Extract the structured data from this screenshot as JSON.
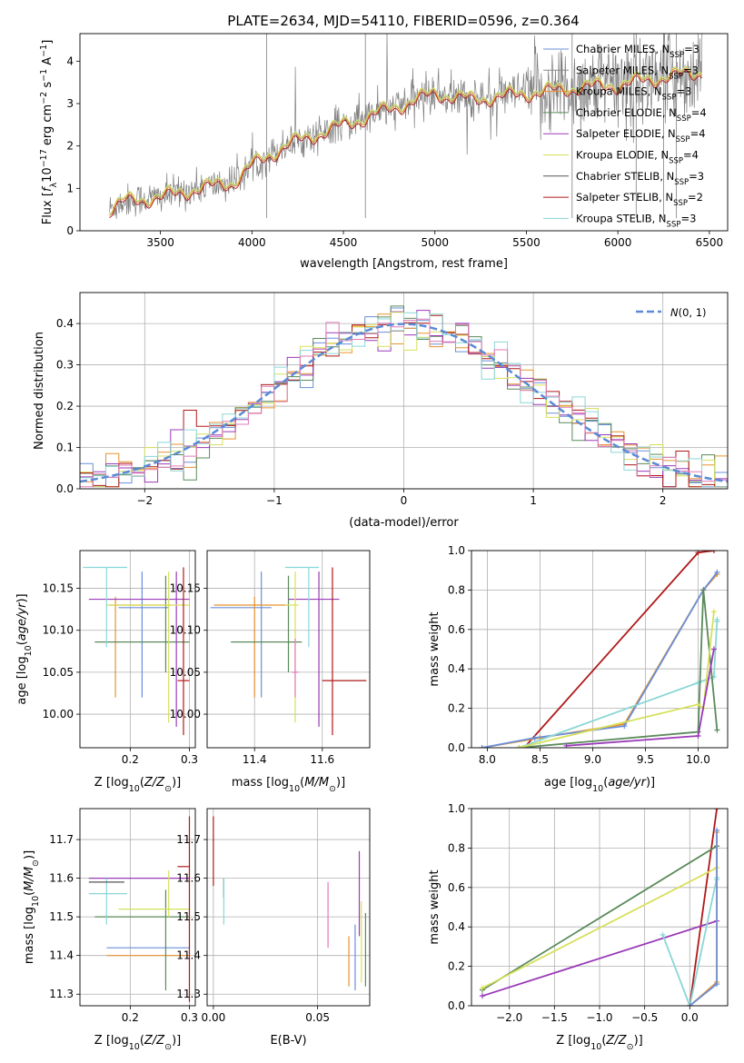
{
  "figure": {
    "title": "PLATE=2634, MJD=54110, FIBERID=0596, z=0.364",
    "colors": {
      "Chabrier MILES": "#6a8fd8",
      "Salpeter MILES": "#8a8a8a",
      "Kroupa MILES": "#e6922e",
      "Chabrier ELODIE": "#5a8a5a",
      "Salpeter ELODIE": "#9a3ab8",
      "Kroupa ELODIE": "#d6e05a",
      "Chabrier STELIB": "#555555",
      "Salpeter STELIB": "#b01818",
      "Kroupa STELIB": "#8ad6d6",
      "gaussian": "#5a8ad6",
      "hist_pink": "#e07ab8"
    }
  },
  "chart_data": [
    {
      "id": "spectrum",
      "type": "line",
      "title": "PLATE=2634, MJD=54110, FIBERID=0596, z=0.364",
      "xlabel": "wavelength [Angstrom, rest frame]",
      "ylabel": "Flux [f_λ 10^-17 erg cm^-2 s^-1 A^-1]",
      "xlim": [
        3060,
        6600
      ],
      "ylim": [
        0,
        4.65
      ],
      "xticks": [
        3500,
        4000,
        4500,
        5000,
        5500,
        6000,
        6500
      ],
      "yticks": [
        0,
        1,
        2,
        3,
        4
      ],
      "legend_position": "upper-right",
      "legend": [
        {
          "name": "Chabrier MILES",
          "nssp": "3"
        },
        {
          "name": "Salpeter MILES",
          "nssp": "3"
        },
        {
          "name": "Kroupa MILES",
          "nssp": "3"
        },
        {
          "name": "Chabrier ELODIE",
          "nssp": "4"
        },
        {
          "name": "Salpeter ELODIE",
          "nssp": "4"
        },
        {
          "name": "Kroupa ELODIE",
          "nssp": "4"
        },
        {
          "name": "Chabrier STELIB",
          "nssp": "3"
        },
        {
          "name": "Salpeter STELIB",
          "nssp": "2"
        },
        {
          "name": "Kroupa STELIB",
          "nssp": "3"
        }
      ],
      "continuum": [
        [
          3220,
          0.5
        ],
        [
          3300,
          0.7
        ],
        [
          3500,
          0.8
        ],
        [
          3700,
          1.0
        ],
        [
          3900,
          1.15
        ],
        [
          4000,
          1.55
        ],
        [
          4200,
          2.05
        ],
        [
          4500,
          2.5
        ],
        [
          4800,
          2.95
        ],
        [
          5000,
          3.25
        ],
        [
          5200,
          3.1
        ],
        [
          5400,
          3.2
        ],
        [
          5600,
          3.3
        ],
        [
          5800,
          3.4
        ],
        [
          6000,
          3.45
        ],
        [
          6200,
          3.6
        ],
        [
          6450,
          3.75
        ]
      ]
    },
    {
      "id": "residuals",
      "type": "histogram",
      "xlabel": "(data-model)/error",
      "ylabel": "Normed distribution",
      "xlim": [
        -2.5,
        2.5
      ],
      "ylim": [
        0,
        0.475
      ],
      "xticks": [
        -2,
        -1,
        0,
        1,
        2
      ],
      "yticks": [
        0.0,
        0.1,
        0.2,
        0.3,
        0.4
      ],
      "legend_position": "upper-right",
      "legend": [
        {
          "name": "N(0, 1)"
        }
      ],
      "gaussian": {
        "mean": 0,
        "sigma": 1
      }
    },
    {
      "id": "age-vs-Z",
      "type": "errorbar",
      "xlabel": "Z [log10(Z/Z⊙)]",
      "ylabel": "age  [log10(age/yr)]",
      "xlim": [
        0.115,
        0.31
      ],
      "ylim": [
        9.96,
        10.195
      ],
      "xticks": [
        0.2,
        0.3
      ],
      "yticks": [
        10.0,
        10.05,
        10.1,
        10.15
      ],
      "points": [
        {
          "s": "Chabrier MILES",
          "x": 0.22,
          "xe": [
            0.18,
            0.265
          ],
          "y": 10.127,
          "ye": [
            10.02,
            10.17
          ]
        },
        {
          "s": "Kroupa MILES",
          "x": 0.175,
          "xe": [
            0.165,
            0.27
          ],
          "y": 10.13,
          "ye": [
            10.02,
            10.14
          ]
        },
        {
          "s": "Chabrier ELODIE",
          "x": 0.26,
          "xe": [
            0.14,
            0.3
          ],
          "y": 10.086,
          "ye": [
            10.05,
            10.165
          ]
        },
        {
          "s": "Salpeter ELODIE",
          "x": 0.278,
          "xe": [
            0.13,
            0.3
          ],
          "y": 10.137,
          "ye": [
            9.985,
            10.17
          ]
        },
        {
          "s": "Kroupa ELODIE",
          "x": 0.265,
          "xe": [
            0.16,
            0.3
          ],
          "y": 10.13,
          "ye": [
            9.99,
            10.17
          ]
        },
        {
          "s": "Salpeter STELIB",
          "x": 0.29,
          "xe": [
            0.28,
            0.3
          ],
          "y": 10.04,
          "ye": [
            9.975,
            10.175
          ]
        },
        {
          "s": "Kroupa STELIB",
          "x": 0.16,
          "xe": [
            0.12,
            0.195
          ],
          "y": 10.175,
          "ye": [
            10.08,
            10.175
          ]
        }
      ]
    },
    {
      "id": "age-vs-mass",
      "type": "errorbar",
      "xlabel": "mass [log10(M/M⊙)]",
      "ylabel": "",
      "xlim": [
        11.26,
        11.74
      ],
      "ylim": [
        9.96,
        10.195
      ],
      "xticks": [
        11.4,
        11.6
      ],
      "yticks": [
        10.0,
        10.05,
        10.1,
        10.15
      ],
      "points": [
        {
          "s": "Chabrier MILES",
          "x": 11.42,
          "xe": [
            11.27,
            11.45
          ],
          "y": 10.127,
          "ye": [
            10.02,
            10.17
          ]
        },
        {
          "s": "Kroupa MILES",
          "x": 11.4,
          "xe": [
            11.28,
            11.5
          ],
          "y": 10.13,
          "ye": [
            10.02,
            10.14
          ]
        },
        {
          "s": "Chabrier ELODIE",
          "x": 11.5,
          "xe": [
            11.33,
            11.54
          ],
          "y": 10.086,
          "ye": [
            10.05,
            10.165
          ]
        },
        {
          "s": "Salpeter ELODIE",
          "x": 11.59,
          "xe": [
            11.5,
            11.65
          ],
          "y": 10.137,
          "ye": [
            9.985,
            10.17
          ]
        },
        {
          "s": "Kroupa ELODIE",
          "x": 11.52,
          "xe": [
            11.49,
            11.53
          ],
          "y": 10.13,
          "ye": [
            9.99,
            10.17
          ]
        },
        {
          "s": "Salpeter STELIB",
          "x": 11.63,
          "xe": [
            11.6,
            11.73
          ],
          "y": 10.04,
          "ye": [
            9.975,
            10.175
          ]
        },
        {
          "s": "Kroupa STELIB",
          "x": 11.56,
          "xe": [
            11.49,
            11.59
          ],
          "y": 10.175,
          "ye": [
            10.08,
            10.175
          ]
        },
        {
          "s": "hist_pink",
          "x": 11.52,
          "xe": [
            11.51,
            11.53
          ],
          "y": 10.05,
          "ye": [
            10.02,
            10.09
          ]
        }
      ]
    },
    {
      "id": "massweight-vs-age",
      "type": "line",
      "xlabel": "age  [log10(age/yr)]",
      "ylabel": "mass weight",
      "xlim": [
        7.85,
        10.28
      ],
      "ylim": [
        0,
        1.0
      ],
      "xticks": [
        8.0,
        8.5,
        9.0,
        9.5,
        10.0
      ],
      "yticks": [
        0.0,
        0.2,
        0.4,
        0.6,
        0.8,
        1.0
      ],
      "series": [
        {
          "s": "Salpeter STELIB",
          "points": [
            [
              8.35,
              0.0
            ],
            [
              10.0,
              0.99
            ],
            [
              10.15,
              1.0
            ]
          ]
        },
        {
          "s": "Kroupa MILES",
          "points": [
            [
              7.95,
              0.0
            ],
            [
              8.5,
              0.05
            ],
            [
              9.3,
              0.12
            ],
            [
              10.05,
              0.8
            ],
            [
              10.18,
              0.88
            ]
          ]
        },
        {
          "s": "Chabrier MILES",
          "points": [
            [
              7.95,
              0.0
            ],
            [
              8.45,
              0.05
            ],
            [
              9.3,
              0.11
            ],
            [
              10.05,
              0.8
            ],
            [
              10.18,
              0.89
            ]
          ]
        },
        {
          "s": "Kroupa STELIB",
          "points": [
            [
              8.3,
              0.0
            ],
            [
              10.0,
              0.33
            ],
            [
              10.15,
              0.36
            ],
            [
              10.18,
              0.65
            ],
            [
              10.18,
              0.64
            ]
          ]
        },
        {
          "s": "Chabrier ELODIE",
          "points": [
            [
              8.3,
              0.0
            ],
            [
              10.0,
              0.08
            ],
            [
              10.05,
              0.8
            ],
            [
              10.18,
              0.09
            ]
          ]
        },
        {
          "s": "Kroupa ELODIE",
          "points": [
            [
              8.3,
              0.0
            ],
            [
              10.0,
              0.22
            ],
            [
              10.05,
              0.2
            ],
            [
              10.15,
              0.69
            ]
          ]
        },
        {
          "s": "Salpeter ELODIE",
          "points": [
            [
              8.75,
              0.01
            ],
            [
              10.0,
              0.06
            ],
            [
              10.15,
              0.5
            ]
          ]
        }
      ]
    },
    {
      "id": "mass-vs-Z",
      "type": "errorbar",
      "xlabel": "Z [log10(Z/Z⊙)]",
      "ylabel": "mass [log10(M/M⊙)]",
      "xlim": [
        0.115,
        0.31
      ],
      "ylim": [
        11.27,
        11.78
      ],
      "xticks": [
        0.2,
        0.3
      ],
      "yticks": [
        11.3,
        11.4,
        11.5,
        11.6,
        11.7
      ],
      "points": [
        {
          "s": "Chabrier MILES",
          "x": 0.2,
          "xe": [
            0.16,
            0.3
          ],
          "y": 11.42,
          "ye": [
            11.42,
            11.42
          ]
        },
        {
          "s": "Kroupa MILES",
          "x": 0.2,
          "xe": [
            0.16,
            0.3
          ],
          "y": 11.4,
          "ye": [
            11.4,
            11.4
          ]
        },
        {
          "s": "Chabrier ELODIE",
          "x": 0.26,
          "xe": [
            0.14,
            0.3
          ],
          "y": 11.5,
          "ye": [
            11.31,
            11.57
          ]
        },
        {
          "s": "Salpeter ELODIE",
          "x": 0.278,
          "xe": [
            0.13,
            0.3
          ],
          "y": 11.6,
          "ye": [
            11.6,
            11.6
          ]
        },
        {
          "s": "Kroupa ELODIE",
          "x": 0.265,
          "xe": [
            0.18,
            0.3
          ],
          "y": 11.52,
          "ye": [
            11.5,
            11.62
          ]
        },
        {
          "s": "Salpeter STELIB",
          "x": 0.3,
          "xe": [
            0.28,
            0.3
          ],
          "y": 11.63,
          "ye": [
            11.28,
            11.76
          ]
        },
        {
          "s": "Kroupa STELIB",
          "x": 0.16,
          "xe": [
            0.13,
            0.195
          ],
          "y": 11.56,
          "ye": [
            11.48,
            11.6
          ]
        },
        {
          "s": "Chabrier STELIB",
          "x": 0.16,
          "xe": [
            0.13,
            0.19
          ],
          "y": 11.59,
          "ye": [
            11.59,
            11.59
          ]
        }
      ]
    },
    {
      "id": "mass-vs-EBV",
      "type": "errorbar",
      "xlabel": "E(B-V)",
      "ylabel": "",
      "xlim": [
        -0.003,
        0.075
      ],
      "ylim": [
        11.27,
        11.78
      ],
      "xticks": [
        0.0,
        0.05
      ],
      "yticks": [
        11.3,
        11.4,
        11.5,
        11.6,
        11.7
      ],
      "points": [
        {
          "s": "Salpeter STELIB",
          "x": 0.0,
          "ye": [
            11.58,
            11.76
          ]
        },
        {
          "s": "Chabrier STELIB",
          "x": 0.005,
          "ye": [
            11.55,
            11.6
          ]
        },
        {
          "s": "Kroupa STELIB",
          "x": 0.005,
          "ye": [
            11.48,
            11.6
          ]
        },
        {
          "s": "hist_pink",
          "x": 0.055,
          "ye": [
            11.42,
            11.59
          ]
        },
        {
          "s": "Kroupa MILES",
          "x": 0.065,
          "ye": [
            11.32,
            11.45
          ]
        },
        {
          "s": "Chabrier MILES",
          "x": 0.068,
          "ye": [
            11.31,
            11.48
          ]
        },
        {
          "s": "Salpeter ELODIE",
          "x": 0.07,
          "ye": [
            11.45,
            11.67
          ]
        },
        {
          "s": "Kroupa ELODIE",
          "x": 0.071,
          "ye": [
            11.33,
            11.54
          ]
        },
        {
          "s": "Chabrier ELODIE",
          "x": 0.073,
          "ye": [
            11.32,
            11.51
          ]
        }
      ]
    },
    {
      "id": "massweight-vs-Z",
      "type": "line",
      "xlabel": "Z [log10(Z/Z⊙)]",
      "ylabel": "mass weight",
      "xlim": [
        -2.42,
        0.42
      ],
      "ylim": [
        0,
        1.0
      ],
      "xticks": [
        -2.0,
        -1.5,
        -1.0,
        -0.5,
        0.0
      ],
      "yticks": [
        0.0,
        0.2,
        0.4,
        0.6,
        0.8,
        1.0
      ],
      "series": [
        {
          "s": "Salpeter STELIB",
          "points": [
            [
              0.0,
              0.0
            ],
            [
              0.3,
              1.0
            ]
          ]
        },
        {
          "s": "Chabrier ELODIE",
          "points": [
            [
              -2.3,
              0.08
            ],
            [
              0.3,
              0.81
            ]
          ]
        },
        {
          "s": "Kroupa ELODIE",
          "points": [
            [
              -2.3,
              0.09
            ],
            [
              0.3,
              0.7
            ]
          ]
        },
        {
          "s": "Salpeter ELODIE",
          "points": [
            [
              -2.3,
              0.05
            ],
            [
              0.3,
              0.43
            ]
          ]
        },
        {
          "s": "Kroupa STELIB",
          "points": [
            [
              -0.3,
              0.36
            ],
            [
              0.0,
              0.0
            ],
            [
              0.3,
              0.65
            ],
            [
              0.3,
              0.64
            ]
          ]
        },
        {
          "s": "Kroupa MILES",
          "points": [
            [
              0.0,
              0.0
            ],
            [
              0.3,
              0.12
            ],
            [
              0.3,
              0.88
            ]
          ]
        },
        {
          "s": "Chabrier MILES",
          "points": [
            [
              0.0,
              0.0
            ],
            [
              0.3,
              0.11
            ],
            [
              0.3,
              0.89
            ]
          ]
        }
      ]
    }
  ]
}
